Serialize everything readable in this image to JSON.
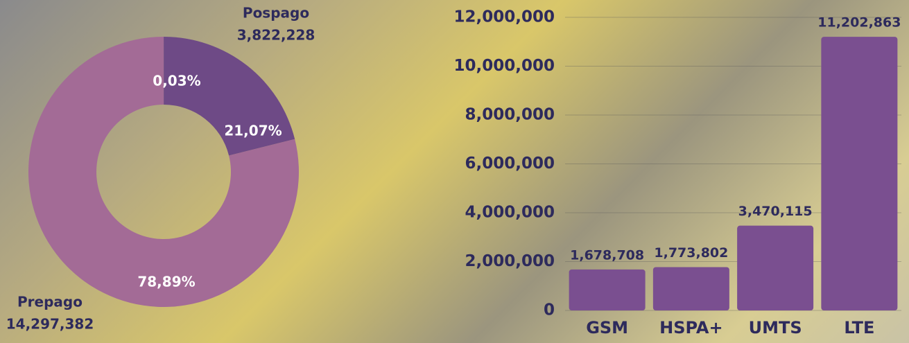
{
  "chart_data": [
    {
      "type": "donut",
      "categories": [
        null,
        "Pospago",
        "Prepago"
      ],
      "values": [
        0.03,
        21.07,
        78.89
      ],
      "value_labels": [
        "0,03%",
        "21,07%",
        "78,89%"
      ],
      "amounts": [
        null,
        3822228,
        14297382
      ],
      "amount_labels": [
        null,
        "3,822,228",
        "14,297,382"
      ],
      "colors": [
        "#6e4a86",
        "#6e4a86",
        "#a36b96"
      ]
    },
    {
      "type": "bar",
      "categories": [
        "GSM",
        "HSPA+",
        "UMTS",
        "LTE"
      ],
      "values": [
        1678708,
        1773802,
        3470115,
        11202863
      ],
      "value_labels": [
        "1,678,708",
        "1,773,802",
        "3,470,115",
        "11,202,863"
      ],
      "color": "#7a4f90",
      "ylim": [
        0,
        12000000
      ],
      "yticks": [
        0,
        {
          "value": 2000000,
          "label": "2,000,000"
        },
        {
          "value": 4000000,
          "label": "4,000,000"
        },
        {
          "value": 6000000,
          "label": "6,000,000"
        },
        {
          "value": 8000000,
          "label": "8,000,000"
        },
        {
          "value": 10000000,
          "label": "10,000,000"
        },
        {
          "value": 12000000,
          "label": "12,000,000"
        }
      ],
      "grid": true
    }
  ]
}
